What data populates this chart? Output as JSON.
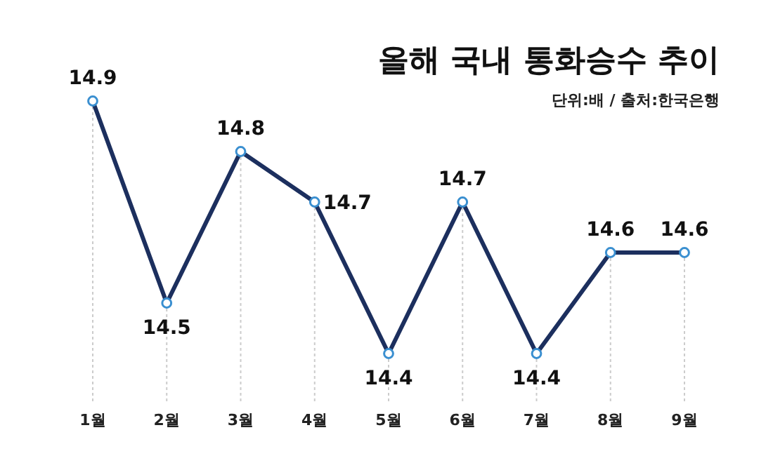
{
  "chart_data": {
    "type": "line",
    "title": "올해 국내 통화승수 추이",
    "subtitle": "단위:배 / 출처:한국은행",
    "categories": [
      "1월",
      "2월",
      "3월",
      "4월",
      "5월",
      "6월",
      "7월",
      "8월",
      "9월"
    ],
    "series": [
      {
        "color": "#1c2f5e",
        "values": [
          14.9,
          14.5,
          14.8,
          14.7,
          14.4,
          14.7,
          14.4,
          14.6,
          14.6
        ]
      }
    ],
    "data_labels": true,
    "marker": "circle",
    "grid": "x"
  }
}
